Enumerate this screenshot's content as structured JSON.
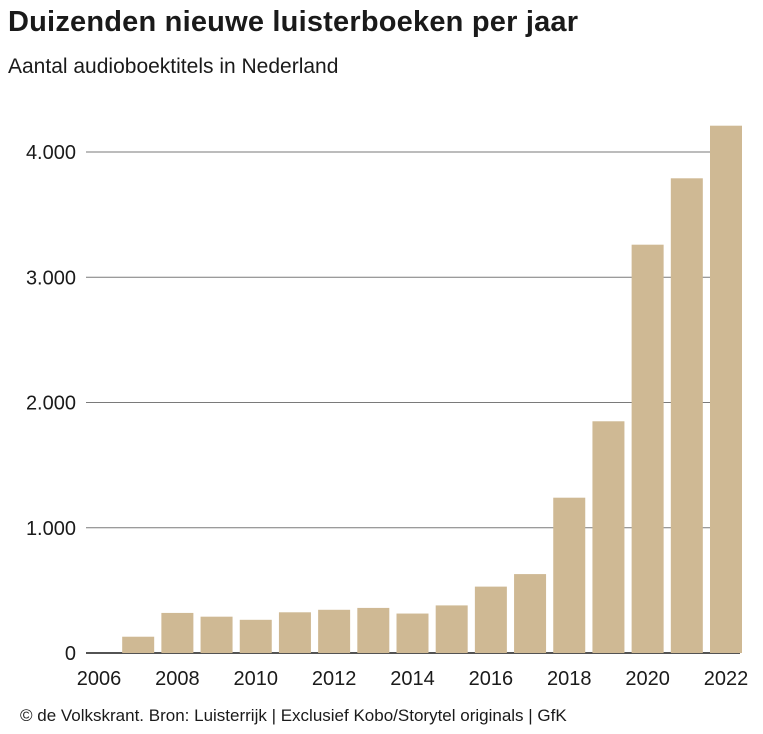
{
  "chart_data": {
    "type": "bar",
    "title": "Duizenden nieuwe luisterboeken per jaar",
    "subtitle": "Aantal audioboektitels in Nederland",
    "x": [
      2007,
      2008,
      2009,
      2010,
      2011,
      2012,
      2013,
      2014,
      2015,
      2016,
      2017,
      2018,
      2019,
      2020,
      2021,
      2022
    ],
    "values": [
      130,
      320,
      290,
      265,
      325,
      345,
      360,
      315,
      380,
      530,
      630,
      1240,
      1850,
      3260,
      3790,
      4210
    ],
    "xlabel": "",
    "ylabel": "",
    "xlim": [
      2006,
      2022.5
    ],
    "ylim": [
      0,
      4300
    ],
    "xticks": [
      2006,
      2008,
      2010,
      2012,
      2014,
      2016,
      2018,
      2020,
      2022
    ],
    "xtick_labels": [
      "2006",
      "2008",
      "2010",
      "2012",
      "2014",
      "2016",
      "2018",
      "2020",
      "2022"
    ],
    "yticks": [
      0,
      1000,
      2000,
      3000,
      4000
    ],
    "ytick_labels": [
      "0",
      "1.000",
      "2.000",
      "3.000",
      "4.000"
    ],
    "grid": "horizontal",
    "bar_color": "#cfb994",
    "grid_color": "#7a7a7a"
  },
  "source": "© de Volkskrant. Bron: Luisterrijk | Exclusief Kobo/Storytel originals | GfK"
}
